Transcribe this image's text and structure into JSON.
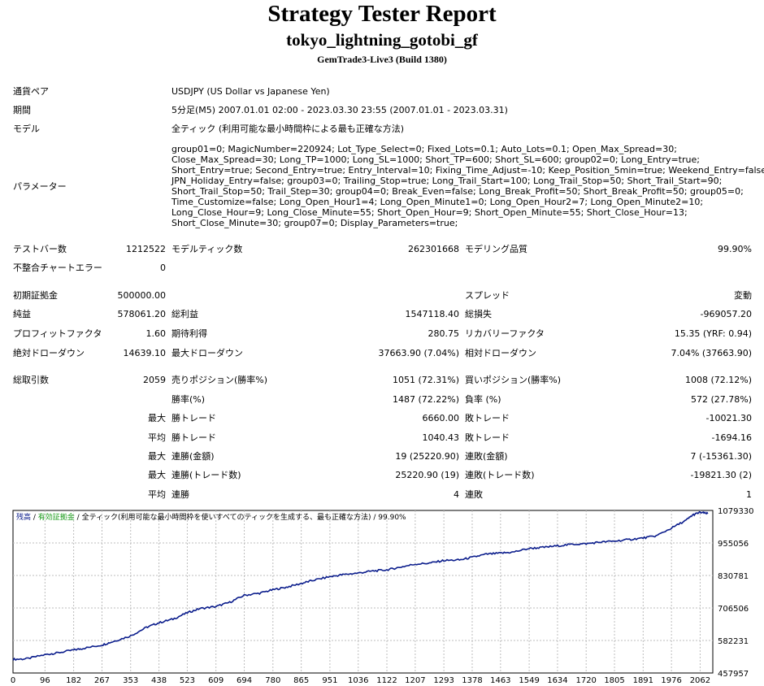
{
  "report": {
    "title": "Strategy Tester Report",
    "subtitle": "tokyo_lightning_gotobi_gf",
    "build": "GemTrade3-Live3 (Build 1380)"
  },
  "info": {
    "symbol_label": "通貨ペア",
    "symbol_value": "USDJPY (US Dollar vs Japanese Yen)",
    "period_label": "期間",
    "period_value": "5分足(M5) 2007.01.01 02:00 - 2023.03.30 23:55 (2007.01.01 - 2023.03.31)",
    "model_label": "モデル",
    "model_value": "全ティック (利用可能な最小時間枠による最も正確な方法)",
    "params_label": "パラメーター",
    "params_lines": [
      "group01=0; MagicNumber=220924; Lot_Type_Select=0; Fixed_Lots=0.1; Auto_Lots=0.1; Open_Max_Spread=30;",
      "Close_Max_Spread=30; Long_TP=1000; Long_SL=1000; Short_TP=600; Short_SL=600; group02=0; Long_Entry=true;",
      "Short_Entry=true; Second_Entry=true; Entry_Interval=10; Fixing_Time_Adjust=-10; Keep_Position_5min=true; Weekend_Entry=false;",
      "JPN_Holiday_Entry=false; group03=0; Trailing_Stop=true; Long_Trail_Start=100; Long_Trail_Stop=50; Short_Trail_Start=90;",
      "Short_Trail_Stop=50; Trail_Step=30; group04=0; Break_Even=false; Long_Break_Profit=50; Short_Break_Profit=50; group05=0;",
      "Time_Customize=false; Long_Open_Hour1=4; Long_Open_Minute1=0; Long_Open_Hour2=7; Long_Open_Minute2=10;",
      "Long_Close_Hour=9; Long_Close_Minute=55; Short_Open_Hour=9; Short_Open_Minute=55; Short_Close_Hour=13;",
      "Short_Close_Minute=30; group07=0; Display_Parameters=true;"
    ]
  },
  "stats": {
    "bars_label": "テストバー数",
    "bars_value": "1212522",
    "ticks_label": "モデルティック数",
    "ticks_value": "262301668",
    "quality_label": "モデリング品質",
    "quality_value": "99.90%",
    "mismatch_label": "不整合チャートエラー",
    "mismatch_value": "0",
    "deposit_label": "初期証拠金",
    "deposit_value": "500000.00",
    "spread_label": "スプレッド",
    "spread_value": "変動",
    "net_label": "純益",
    "net_value": "578061.20",
    "gross_profit_label": "総利益",
    "gross_profit_value": "1547118.40",
    "gross_loss_label": "総損失",
    "gross_loss_value": "-969057.20",
    "pf_label": "プロフィットファクタ",
    "pf_value": "1.60",
    "expected_label": "期待利得",
    "expected_value": "280.75",
    "recovery_label": "リカバリーファクタ",
    "recovery_value": "15.35 (YRF: 0.94)",
    "abs_dd_label": "絶対ドローダウン",
    "abs_dd_value": "14639.10",
    "max_dd_label": "最大ドローダウン",
    "max_dd_value": "37663.90 (7.04%)",
    "rel_dd_label": "相対ドローダウン",
    "rel_dd_value": "7.04% (37663.90)",
    "trades_label": "総取引数",
    "trades_value": "2059",
    "short_label": "売りポジション(勝率%)",
    "short_value": "1051 (72.31%)",
    "long_label": "買いポジション(勝率%)",
    "long_value": "1008 (72.12%)",
    "winrate_label": "勝率(%)",
    "winrate_value": "1487 (72.22%)",
    "lossrate_label": "負率 (%)",
    "lossrate_value": "572 (27.78%)",
    "max1": "最大",
    "max_win_label": "勝トレード",
    "max_win_value": "6660.00",
    "max_loss_label": "敗トレード",
    "max_loss_value": "-10021.30",
    "avg1": "平均",
    "avg_win_label": "勝トレード",
    "avg_win_value": "1040.43",
    "avg_loss_label": "敗トレード",
    "avg_loss_value": "-1694.16",
    "max2": "最大",
    "cw_amt_label": "連勝(金額)",
    "cw_amt_value": "19 (25220.90)",
    "cl_amt_label": "連敗(金額)",
    "cl_amt_value": "7 (-15361.30)",
    "max3": "最大",
    "cw_cnt_label": "連勝(トレード数)",
    "cw_cnt_value": "25220.90 (19)",
    "cl_cnt_label": "連敗(トレード数)",
    "cl_cnt_value": "-19821.30 (2)",
    "avg2": "平均",
    "cw_avg_label": "連勝",
    "cw_avg_value": "4",
    "cl_avg_label": "連敗",
    "cl_avg_value": "1"
  },
  "chart_data": {
    "type": "line",
    "legend": {
      "balance": "残高",
      "sep1": " / ",
      "equity": "有効証拠金",
      "sep2": " / ",
      "model": "全ティック(利用可能な最小時間枠を使いすべてのティックを生成する、最も正確な方法)",
      "sep3": " / ",
      "quality": "99.90%"
    },
    "x_ticks": [
      0,
      96,
      182,
      267,
      353,
      438,
      523,
      609,
      694,
      780,
      865,
      951,
      1036,
      1122,
      1207,
      1293,
      1378,
      1463,
      1549,
      1634,
      1720,
      1805,
      1891,
      1976,
      2062
    ],
    "y_ticks": [
      "1079330",
      "955056",
      "830781",
      "706506",
      "582231",
      "457957"
    ],
    "ylim": [
      457957,
      1079330
    ],
    "xlim": [
      0,
      2100
    ],
    "series": [
      {
        "color": "#0b1d8c",
        "x": [
          0,
          40,
          96,
          130,
          182,
          210,
          267,
          300,
          353,
          400,
          438,
          480,
          523,
          560,
          609,
          650,
          694,
          740,
          780,
          820,
          865,
          900,
          951,
          990,
          1036,
          1080,
          1122,
          1160,
          1207,
          1250,
          1293,
          1340,
          1378,
          1420,
          1463,
          1500,
          1549,
          1590,
          1634,
          1680,
          1720,
          1760,
          1805,
          1850,
          1891,
          1930,
          1976,
          2020,
          2040,
          2062,
          2085
        ],
        "y": [
          510000,
          512000,
          528000,
          534000,
          546000,
          552000,
          565000,
          578000,
          600000,
          632000,
          650000,
          664000,
          688000,
          704000,
          712000,
          728000,
          755000,
          763000,
          776000,
          786000,
          800000,
          812000,
          826000,
          834000,
          840000,
          848000,
          852000,
          862000,
          874000,
          878000,
          888000,
          890000,
          900000,
          912000,
          916000,
          920000,
          934000,
          938000,
          944000,
          950000,
          952000,
          958000,
          962000,
          968000,
          974000,
          982000,
          1012000,
          1042000,
          1062000,
          1072000,
          1067000
        ]
      }
    ]
  }
}
